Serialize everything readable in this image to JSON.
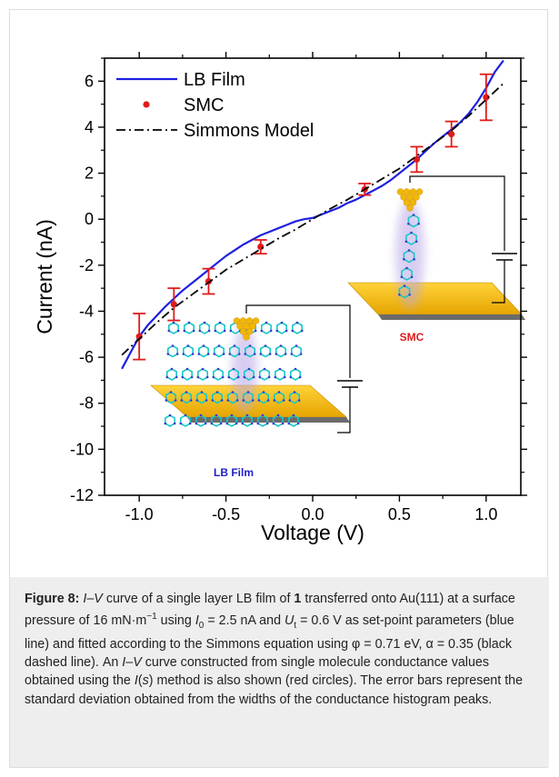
{
  "chart_data": {
    "type": "line",
    "xlabel": "Voltage (V)",
    "ylabel": "Current (nA)",
    "xlim": [
      -1.2,
      1.2
    ],
    "ylim": [
      -12,
      7
    ],
    "x_ticks": [
      "-1.0",
      "-0.5",
      "0.0",
      "0.5",
      "1.0"
    ],
    "x_tick_values": [
      -1.0,
      -0.5,
      0.0,
      0.5,
      1.0
    ],
    "y_ticks": [
      "-12",
      "-10",
      "-8",
      "-6",
      "-4",
      "-2",
      "0",
      "2",
      "4",
      "6"
    ],
    "y_tick_values": [
      -12,
      -10,
      -8,
      -6,
      -4,
      -2,
      0,
      2,
      4,
      6
    ],
    "legend_position": "top-left",
    "grid": false,
    "series": [
      {
        "name": "LB Film",
        "style": "solid-line",
        "color": "#1f1fe0",
        "x": [
          -1.1,
          -1.05,
          -1.0,
          -0.95,
          -0.9,
          -0.85,
          -0.8,
          -0.75,
          -0.7,
          -0.65,
          -0.6,
          -0.55,
          -0.5,
          -0.45,
          -0.4,
          -0.35,
          -0.3,
          -0.25,
          -0.2,
          -0.15,
          -0.1,
          -0.05,
          0.0,
          0.05,
          0.1,
          0.15,
          0.2,
          0.25,
          0.3,
          0.35,
          0.4,
          0.45,
          0.5,
          0.55,
          0.6,
          0.65,
          0.7,
          0.75,
          0.8,
          0.85,
          0.9,
          0.95,
          1.0,
          1.05,
          1.1
        ],
        "y": [
          -6.5,
          -5.8,
          -5.1,
          -4.6,
          -4.2,
          -3.8,
          -3.45,
          -3.1,
          -2.8,
          -2.5,
          -2.2,
          -1.9,
          -1.6,
          -1.35,
          -1.1,
          -0.9,
          -0.7,
          -0.55,
          -0.4,
          -0.25,
          -0.1,
          0.0,
          0.05,
          0.2,
          0.35,
          0.5,
          0.7,
          0.85,
          1.05,
          1.25,
          1.45,
          1.7,
          2.0,
          2.3,
          2.6,
          2.95,
          3.3,
          3.6,
          3.9,
          4.2,
          4.6,
          5.1,
          5.7,
          6.4,
          6.9
        ]
      },
      {
        "name": "SMC",
        "style": "markers-with-error-bars",
        "color": "#e01b1b",
        "x": [
          -1.0,
          -0.8,
          -0.6,
          -0.3,
          0.3,
          0.6,
          0.8,
          1.0
        ],
        "y": [
          -5.1,
          -3.7,
          -2.7,
          -1.2,
          1.3,
          2.6,
          3.7,
          5.3
        ],
        "error": [
          1.0,
          0.7,
          0.55,
          0.3,
          0.25,
          0.55,
          0.55,
          1.0
        ]
      },
      {
        "name": "Simmons Model",
        "style": "dash-dot-line",
        "color": "#000000",
        "x": [
          -1.1,
          -1.0,
          -0.9,
          -0.8,
          -0.7,
          -0.6,
          -0.5,
          -0.4,
          -0.3,
          -0.2,
          -0.1,
          0.0,
          0.1,
          0.2,
          0.3,
          0.4,
          0.5,
          0.6,
          0.7,
          0.8,
          0.9,
          1.0,
          1.1
        ],
        "y": [
          -5.9,
          -5.2,
          -4.5,
          -3.85,
          -3.3,
          -2.75,
          -2.2,
          -1.75,
          -1.3,
          -0.85,
          -0.45,
          0.0,
          0.45,
          0.85,
          1.3,
          1.75,
          2.2,
          2.75,
          3.3,
          3.85,
          4.5,
          5.2,
          5.9
        ]
      }
    ]
  },
  "insets": {
    "smc_label": "SMC",
    "lb_label": "LB Film",
    "smc_label_color": "#e01b1b",
    "lb_label_color": "#1f1fc8",
    "gold_color": "#f2b705",
    "molecule_color": "#19c8c8",
    "glow_color": "#b9a6e6"
  },
  "caption": {
    "label": "Figure 8:",
    "segments": [
      {
        "t": " "
      },
      {
        "t": "I",
        "i": true
      },
      {
        "t": "–"
      },
      {
        "t": "V",
        "i": true
      },
      {
        "t": " curve of a single layer LB film of "
      },
      {
        "t": "1",
        "b": true
      },
      {
        "t": " transferred onto Au(111) at a surface pressure of 16 mN·m"
      },
      {
        "t": "−1",
        "sup": true
      },
      {
        "t": " using "
      },
      {
        "t": "I",
        "i": true
      },
      {
        "t": "0",
        "sub": true
      },
      {
        "t": " = 2.5 nA and "
      },
      {
        "t": "U",
        "i": true
      },
      {
        "t": "t",
        "sub": true
      },
      {
        "t": " = 0.6 V as set-point parameters (blue line) and fitted according to the Simmons equation using φ = 0.71 eV, α = 0.35 (black dashed line). An "
      },
      {
        "t": "I",
        "i": true
      },
      {
        "t": "–"
      },
      {
        "t": "V",
        "i": true
      },
      {
        "t": " curve constructed from single molecule conductance values obtained using the "
      },
      {
        "t": "I",
        "i": true
      },
      {
        "t": "("
      },
      {
        "t": "s",
        "i": true
      },
      {
        "t": ") method is also shown (red circles). The error bars represent the standard deviation obtained from the widths of the conductance histogram peaks."
      }
    ]
  }
}
